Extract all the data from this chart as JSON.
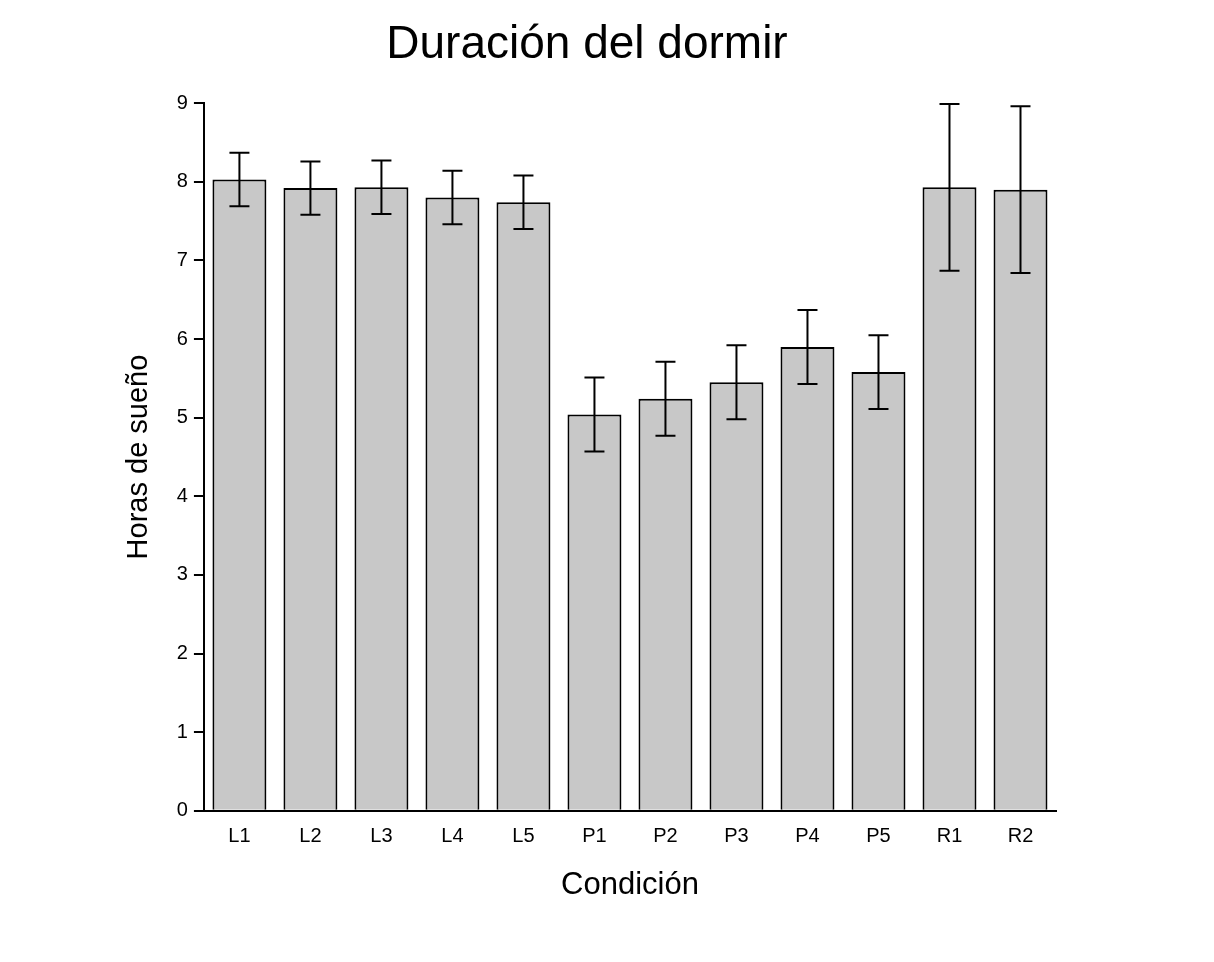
{
  "chart_data": {
    "type": "bar",
    "title": "Duración del dormir",
    "xlabel": "Condición",
    "ylabel": "Horas de sueño",
    "categories": [
      "L1",
      "L2",
      "L3",
      "L4",
      "L5",
      "P1",
      "P2",
      "P3",
      "P4",
      "P5",
      "R1",
      "R2"
    ],
    "values": [
      8.03,
      7.92,
      7.93,
      7.8,
      7.74,
      5.04,
      5.24,
      5.45,
      5.9,
      5.58,
      7.93,
      7.9
    ],
    "errors": [
      0.34,
      0.34,
      0.34,
      0.34,
      0.34,
      0.47,
      0.47,
      0.47,
      0.47,
      0.47,
      1.06,
      1.06
    ],
    "color": "#c8c8c8",
    "ylim": [
      0,
      9
    ],
    "yticks": [
      0,
      1,
      2,
      3,
      4,
      5,
      6,
      7,
      8,
      9
    ],
    "grid": false,
    "legend": false
  }
}
